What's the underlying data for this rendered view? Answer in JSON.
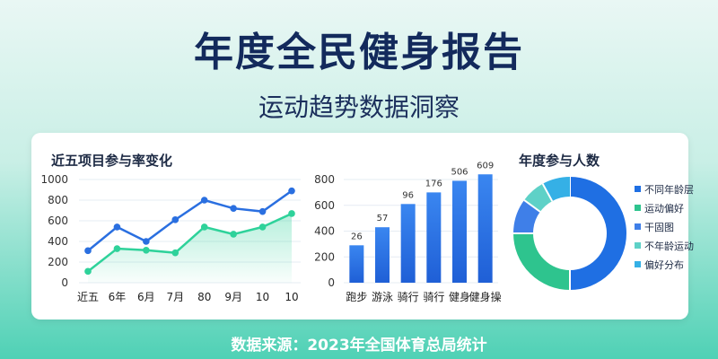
{
  "header": {
    "title": "年度全民健身报告",
    "subtitle": "运动趋势数据洞察"
  },
  "footer": {
    "source": "数据来源：2023年全国体育总局统计"
  },
  "colors": {
    "blue": "#2a6fe0",
    "green": "#2ed29a",
    "navy": "#132a5c"
  },
  "chart_data": [
    {
      "type": "line",
      "title": "近五项目参与率变化",
      "categories": [
        "近五",
        "6年",
        "6月",
        "7月",
        "80",
        "9月",
        "10",
        "10"
      ],
      "ylim": [
        0,
        1000
      ],
      "yticks": [
        0,
        200,
        400,
        600,
        800,
        1000
      ],
      "grid": true,
      "series": [
        {
          "color": "#2a6fe0",
          "values": [
            310,
            540,
            400,
            610,
            800,
            720,
            690,
            890
          ]
        },
        {
          "color": "#2ed29a",
          "values": [
            110,
            330,
            315,
            290,
            540,
            470,
            540,
            670
          ],
          "fill": true
        }
      ]
    },
    {
      "type": "bar",
      "categories": [
        "跑步",
        "游泳",
        "骑行",
        "骑行",
        "健身",
        "健身操"
      ],
      "values": [
        26,
        57,
        96,
        176,
        506,
        609
      ],
      "bar_heights_display": [
        290,
        430,
        610,
        700,
        790,
        840
      ],
      "ylim": [
        0,
        800
      ],
      "yticks": [
        0,
        200,
        400,
        600,
        800
      ],
      "grid": true
    },
    {
      "type": "pie",
      "title": "年度参与人数",
      "donut": true,
      "slices": [
        {
          "label": "不同年龄层",
          "value": 50,
          "color": "#1f6fe3"
        },
        {
          "label": "运动偏好",
          "value": 25,
          "color": "#2ec48e"
        },
        {
          "label": "干固图",
          "value": 10,
          "color": "#3f7fe8"
        },
        {
          "label": "不年龄运动",
          "value": 7,
          "color": "#5ed1c7"
        },
        {
          "label": "偏好分布",
          "value": 8,
          "color": "#35b0e6"
        }
      ],
      "legend_placement": "right"
    }
  ]
}
